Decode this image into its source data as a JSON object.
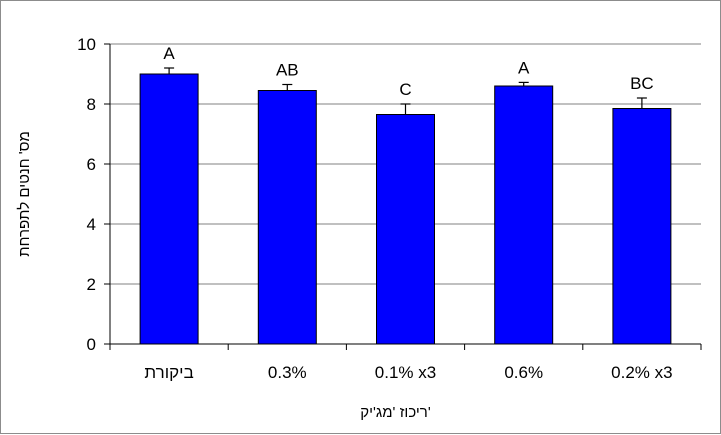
{
  "chart_data": {
    "type": "bar",
    "categories": [
      "ביקורת",
      "0.3%",
      "0.1% x3",
      "0.6%",
      "0.2% x3"
    ],
    "values": [
      9.0,
      8.45,
      7.65,
      8.6,
      7.85
    ],
    "error": [
      0.2,
      0.2,
      0.35,
      0.12,
      0.35
    ],
    "significance_letters": [
      "A",
      "AB",
      "C",
      "A",
      "BC"
    ],
    "xlabel": "ריכוז 'מג'יק'",
    "ylabel": "מס' חנטים לתפרחת",
    "ylim": [
      0,
      10
    ],
    "yticks": [
      0,
      2,
      4,
      6,
      8,
      10
    ],
    "grid": true,
    "colors": {
      "bar": "#0000ff",
      "bar_edge": "#000000",
      "grid": "#808080",
      "axis": "#000000"
    }
  }
}
